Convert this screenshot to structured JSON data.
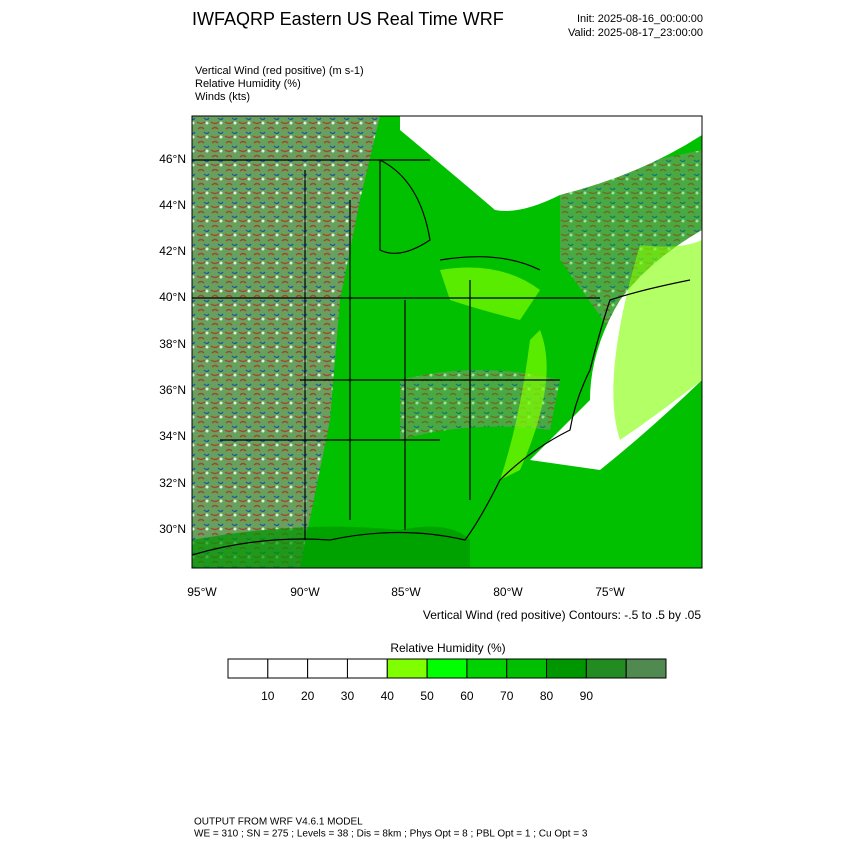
{
  "header": {
    "title": "IWFAQRP Eastern US Real Time WRF",
    "init": "Init: 2025-08-16_00:00:00",
    "valid": "Valid: 2025-08-17_23:00:00"
  },
  "fields": [
    "Vertical Wind (red positive)   (m s-1)",
    "Relative Humidity   (%)",
    "Winds   (kts)"
  ],
  "map": {
    "lat_labels": [
      "46°N",
      "44°N",
      "42°N",
      "40°N",
      "38°N",
      "36°N",
      "34°N",
      "32°N",
      "30°N"
    ],
    "lon_labels": [
      "95°W",
      "90°W",
      "85°W",
      "80°W",
      "75°W"
    ],
    "contour_note": "Vertical Wind (red positive) Contours: -.5 to .5 by .05"
  },
  "colorbar": {
    "title": "Relative Humidity  (%)",
    "colors": [
      "#ffffff",
      "#ffffff",
      "#ffffff",
      "#ffffff",
      "#80ff00",
      "#00ff00",
      "#00d200",
      "#00be00",
      "#009600",
      "#228b22",
      "#508a50"
    ],
    "labels": [
      "10",
      "20",
      "30",
      "40",
      "50",
      "60",
      "70",
      "80",
      "90"
    ]
  },
  "footer": {
    "line1": "OUTPUT FROM WRF V4.6.1 MODEL",
    "line2": "WE = 310 ; SN = 275 ; Levels = 38 ; Dis = 8km ; Phys Opt = 8 ; PBL Opt = 1 ; Cu Opt = 3"
  }
}
